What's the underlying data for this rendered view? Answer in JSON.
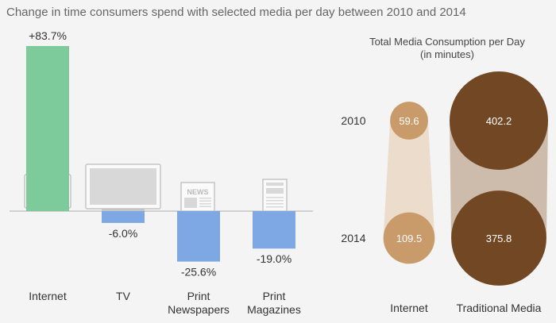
{
  "title": "Change in time consumers spend with selected media per day between 2010 and 2014",
  "colors": {
    "positive": "#7dcb9b",
    "negative": "#7ea8e4",
    "baseline": "#bbbbbb",
    "internet_bubble": "#c99a6a",
    "internet_band": "#ecdccb",
    "traditional_bubble": "#724824",
    "traditional_band": "#cdbcab",
    "icon_fill": "#d8d8d8",
    "icon_stroke": "#c4c4c4"
  },
  "icons": [
    "computer-monitor-icon",
    "tv-icon",
    "newspaper-icon",
    "magazine-icon"
  ],
  "newspaper_icon_text": "NEWS",
  "chart_data": [
    {
      "type": "bar",
      "title": "Change in time consumers spend with selected media per day between 2010 and 2014",
      "categories": [
        "Internet",
        "TV",
        "Print\nNewspapers",
        "Print\nMagazines"
      ],
      "category_lines": [
        [
          "Internet"
        ],
        [
          "TV"
        ],
        [
          "Print",
          "Newspapers"
        ],
        [
          "Print",
          "Magazines"
        ]
      ],
      "values": [
        83.7,
        -6.0,
        -25.6,
        -19.0
      ],
      "value_labels": [
        "+83.7%",
        "-6.0%",
        "-25.6%",
        "-19.0%"
      ],
      "ylim": [
        -30,
        90
      ],
      "grid": false,
      "legend": "none"
    },
    {
      "type": "bubble",
      "title": "Total Media Consumption per Day",
      "subtitle": "(in minutes)",
      "years": [
        "2010",
        "2014"
      ],
      "series": [
        {
          "name": "Internet",
          "values": [
            59.6,
            109.5
          ],
          "labels": [
            "59.6",
            "109.5"
          ]
        },
        {
          "name": "Traditional Media",
          "values": [
            402.2,
            375.8
          ],
          "labels": [
            "402.2",
            "375.8"
          ]
        }
      ]
    }
  ]
}
